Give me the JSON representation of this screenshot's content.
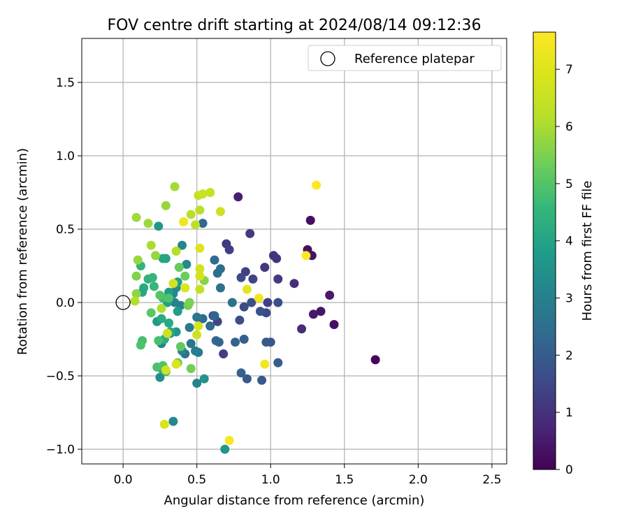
{
  "chart_data": {
    "type": "scatter",
    "title": "FOV centre drift starting at 2024/08/14 09:12:36",
    "xlabel": "Angular distance from reference (arcmin)",
    "ylabel": "Rotation from reference (arcmin)",
    "xlim": [
      -0.28,
      2.6
    ],
    "ylim": [
      -1.1,
      1.8
    ],
    "xticks": [
      0.0,
      0.5,
      1.0,
      1.5,
      2.0,
      2.5
    ],
    "xtick_labels": [
      "0.0",
      "0.5",
      "1.0",
      "1.5",
      "2.0",
      "2.5"
    ],
    "yticks": [
      -1.0,
      -0.5,
      0.0,
      0.5,
      1.0,
      1.5
    ],
    "ytick_labels": [
      "−1.0",
      "−0.5",
      "0.0",
      "0.5",
      "1.0",
      "1.5"
    ],
    "grid": true,
    "legend": {
      "placement": "top-right",
      "entries": [
        "Reference platepar"
      ]
    },
    "reference_point": {
      "x": 0.0,
      "y": 0.0,
      "label": "Reference platepar"
    },
    "colorbar": {
      "label": "Hours from first FF file",
      "colormap": "viridis",
      "range": [
        0,
        7.65
      ],
      "ticks": [
        0,
        1,
        2,
        3,
        4,
        5,
        6,
        7
      ],
      "tick_labels": [
        "0",
        "1",
        "2",
        "3",
        "4",
        "5",
        "6",
        "7"
      ]
    },
    "points": [
      {
        "x": 1.71,
        "y": -0.39,
        "c": 0.1
      },
      {
        "x": 1.43,
        "y": -0.15,
        "c": 0.3
      },
      {
        "x": 1.34,
        "y": -0.06,
        "c": 0.4
      },
      {
        "x": 1.29,
        "y": -0.08,
        "c": 0.45
      },
      {
        "x": 1.4,
        "y": 0.05,
        "c": 0.5
      },
      {
        "x": 1.28,
        "y": 0.32,
        "c": 0.35
      },
      {
        "x": 1.25,
        "y": 0.36,
        "c": 0.3
      },
      {
        "x": 1.27,
        "y": 0.56,
        "c": 0.25
      },
      {
        "x": 0.78,
        "y": 0.72,
        "c": 0.6
      },
      {
        "x": 1.21,
        "y": -0.18,
        "c": 0.85
      },
      {
        "x": 1.16,
        "y": 0.13,
        "c": 0.9
      },
      {
        "x": 1.02,
        "y": 0.32,
        "c": 1.0
      },
      {
        "x": 1.04,
        "y": 0.3,
        "c": 1.05
      },
      {
        "x": 1.05,
        "y": 0.16,
        "c": 1.2
      },
      {
        "x": 0.96,
        "y": 0.24,
        "c": 1.1
      },
      {
        "x": 0.86,
        "y": 0.47,
        "c": 1.2
      },
      {
        "x": 0.7,
        "y": 0.4,
        "c": 1.15
      },
      {
        "x": 0.72,
        "y": 0.36,
        "c": 1.3
      },
      {
        "x": 0.83,
        "y": 0.21,
        "c": 1.35
      },
      {
        "x": 0.88,
        "y": 0.16,
        "c": 1.4
      },
      {
        "x": 0.8,
        "y": 0.17,
        "c": 1.55
      },
      {
        "x": 0.97,
        "y": -0.07,
        "c": 1.5
      },
      {
        "x": 0.98,
        "y": 0.0,
        "c": 1.3
      },
      {
        "x": 1.05,
        "y": 0.0,
        "c": 1.7
      },
      {
        "x": 0.93,
        "y": -0.06,
        "c": 1.75
      },
      {
        "x": 0.87,
        "y": 0.0,
        "c": 1.7
      },
      {
        "x": 0.82,
        "y": -0.03,
        "c": 1.6
      },
      {
        "x": 0.79,
        "y": -0.12,
        "c": 1.65
      },
      {
        "x": 0.61,
        "y": -0.09,
        "c": 1.6
      },
      {
        "x": 0.64,
        "y": -0.13,
        "c": 1.5
      },
      {
        "x": 0.68,
        "y": -0.35,
        "c": 1.3
      },
      {
        "x": 0.97,
        "y": -0.27,
        "c": 1.9
      },
      {
        "x": 1.0,
        "y": -0.27,
        "c": 1.85
      },
      {
        "x": 1.05,
        "y": -0.41,
        "c": 2.0
      },
      {
        "x": 0.94,
        "y": -0.53,
        "c": 1.95
      },
      {
        "x": 0.84,
        "y": -0.52,
        "c": 2.0
      },
      {
        "x": 0.8,
        "y": -0.48,
        "c": 2.15
      },
      {
        "x": 0.82,
        "y": -0.25,
        "c": 2.1
      },
      {
        "x": 0.76,
        "y": -0.27,
        "c": 2.2
      },
      {
        "x": 0.63,
        "y": -0.26,
        "c": 2.3
      },
      {
        "x": 0.65,
        "y": -0.27,
        "c": 2.25
      },
      {
        "x": 0.54,
        "y": -0.11,
        "c": 2.4
      },
      {
        "x": 0.59,
        "y": -0.16,
        "c": 2.35
      },
      {
        "x": 0.62,
        "y": -0.09,
        "c": 2.2
      },
      {
        "x": 0.74,
        "y": 0.0,
        "c": 2.6
      },
      {
        "x": 0.66,
        "y": 0.1,
        "c": 2.55
      },
      {
        "x": 0.66,
        "y": 0.23,
        "c": 2.45
      },
      {
        "x": 0.64,
        "y": 0.2,
        "c": 2.5
      },
      {
        "x": 0.62,
        "y": 0.29,
        "c": 2.4
      },
      {
        "x": 0.54,
        "y": 0.54,
        "c": 2.3
      },
      {
        "x": 0.5,
        "y": -0.1,
        "c": 2.75
      },
      {
        "x": 0.51,
        "y": -0.34,
        "c": 2.8
      },
      {
        "x": 0.49,
        "y": -0.33,
        "c": 2.9
      },
      {
        "x": 0.46,
        "y": -0.28,
        "c": 2.7
      },
      {
        "x": 0.45,
        "y": -0.17,
        "c": 2.8
      },
      {
        "x": 0.42,
        "y": -0.35,
        "c": 2.6
      },
      {
        "x": 0.4,
        "y": -0.33,
        "c": 3.1
      },
      {
        "x": 0.39,
        "y": -0.02,
        "c": 3.0
      },
      {
        "x": 0.35,
        "y": 0.0,
        "c": 3.1
      },
      {
        "x": 0.4,
        "y": 0.39,
        "c": 3.2
      },
      {
        "x": 0.43,
        "y": 0.26,
        "c": 3.3
      },
      {
        "x": 0.36,
        "y": 0.1,
        "c": 3.35
      },
      {
        "x": 0.34,
        "y": 0.06,
        "c": 3.2
      },
      {
        "x": 0.34,
        "y": -0.81,
        "c": 3.2
      },
      {
        "x": 0.5,
        "y": -0.55,
        "c": 3.1
      },
      {
        "x": 0.55,
        "y": -0.52,
        "c": 3.5
      },
      {
        "x": 0.69,
        "y": -1.0,
        "c": 3.6
      },
      {
        "x": 0.32,
        "y": -0.21,
        "c": 3.4
      },
      {
        "x": 0.28,
        "y": -0.25,
        "c": 3.3
      },
      {
        "x": 0.26,
        "y": -0.28,
        "c": 3.2
      },
      {
        "x": 0.25,
        "y": -0.51,
        "c": 3.35
      },
      {
        "x": 0.23,
        "y": -0.13,
        "c": 3.65
      },
      {
        "x": 0.24,
        "y": 0.52,
        "c": 3.7
      },
      {
        "x": 0.36,
        "y": -0.2,
        "c": 3.6
      },
      {
        "x": 0.37,
        "y": -0.06,
        "c": 3.8
      },
      {
        "x": 0.37,
        "y": 0.14,
        "c": 3.9
      },
      {
        "x": 0.3,
        "y": 0.0,
        "c": 3.9
      },
      {
        "x": 0.31,
        "y": 0.07,
        "c": 3.75
      },
      {
        "x": 0.29,
        "y": 0.3,
        "c": 4.0
      },
      {
        "x": 0.27,
        "y": 0.3,
        "c": 4.05
      },
      {
        "x": 0.32,
        "y": -0.2,
        "c": 4.1
      },
      {
        "x": 0.31,
        "y": -0.14,
        "c": 4.15
      },
      {
        "x": 0.26,
        "y": -0.11,
        "c": 4.2
      },
      {
        "x": 0.26,
        "y": -0.45,
        "c": 4.25
      },
      {
        "x": 0.28,
        "y": -0.25,
        "c": 4.3
      },
      {
        "x": 0.14,
        "y": 0.1,
        "c": 4.2
      },
      {
        "x": 0.13,
        "y": 0.07,
        "c": 4.1
      },
      {
        "x": 0.17,
        "y": 0.16,
        "c": 4.4
      },
      {
        "x": 0.12,
        "y": 0.25,
        "c": 4.5
      },
      {
        "x": 0.2,
        "y": 0.17,
        "c": 4.55
      },
      {
        "x": 0.21,
        "y": 0.11,
        "c": 4.6
      },
      {
        "x": 0.27,
        "y": 0.03,
        "c": 4.7
      },
      {
        "x": 0.29,
        "y": -0.47,
        "c": 4.7
      },
      {
        "x": 0.13,
        "y": -0.26,
        "c": 4.8
      },
      {
        "x": 0.12,
        "y": -0.29,
        "c": 4.9
      },
      {
        "x": 0.24,
        "y": -0.26,
        "c": 4.85
      },
      {
        "x": 0.23,
        "y": -0.44,
        "c": 4.9
      },
      {
        "x": 0.27,
        "y": -0.43,
        "c": 5.0
      },
      {
        "x": 0.25,
        "y": 0.05,
        "c": 5.0
      },
      {
        "x": 0.31,
        "y": 0.03,
        "c": 4.95
      },
      {
        "x": 0.19,
        "y": -0.07,
        "c": 5.1
      },
      {
        "x": 0.39,
        "y": -0.3,
        "c": 5.2
      },
      {
        "x": 0.38,
        "y": 0.24,
        "c": 5.25
      },
      {
        "x": 0.42,
        "y": 0.18,
        "c": 5.3
      },
      {
        "x": 0.44,
        "y": -0.02,
        "c": 5.35
      },
      {
        "x": 0.46,
        "y": -0.45,
        "c": 5.4
      },
      {
        "x": 0.37,
        "y": -0.41,
        "c": 5.3
      },
      {
        "x": 0.45,
        "y": 0.0,
        "c": 5.5
      },
      {
        "x": 0.55,
        "y": 0.15,
        "c": 5.6
      },
      {
        "x": 0.09,
        "y": 0.18,
        "c": 5.55
      },
      {
        "x": 0.09,
        "y": 0.06,
        "c": 5.7
      },
      {
        "x": 0.1,
        "y": 0.29,
        "c": 5.8
      },
      {
        "x": 0.22,
        "y": 0.32,
        "c": 5.75
      },
      {
        "x": 0.09,
        "y": 0.58,
        "c": 5.9
      },
      {
        "x": 0.17,
        "y": 0.54,
        "c": 5.85
      },
      {
        "x": 0.29,
        "y": 0.66,
        "c": 5.8
      },
      {
        "x": 0.35,
        "y": 0.79,
        "c": 5.95
      },
      {
        "x": 0.19,
        "y": 0.39,
        "c": 6.0
      },
      {
        "x": 0.26,
        "y": -0.04,
        "c": 6.05
      },
      {
        "x": 0.08,
        "y": 0.01,
        "c": 6.1
      },
      {
        "x": 0.36,
        "y": 0.35,
        "c": 6.15
      },
      {
        "x": 0.46,
        "y": 0.6,
        "c": 6.2
      },
      {
        "x": 0.49,
        "y": 0.53,
        "c": 6.3
      },
      {
        "x": 0.52,
        "y": 0.63,
        "c": 6.25
      },
      {
        "x": 0.51,
        "y": 0.73,
        "c": 6.4
      },
      {
        "x": 0.59,
        "y": 0.75,
        "c": 6.5
      },
      {
        "x": 0.54,
        "y": 0.74,
        "c": 6.55
      },
      {
        "x": 0.66,
        "y": 0.62,
        "c": 6.6
      },
      {
        "x": 0.52,
        "y": 0.09,
        "c": 6.45
      },
      {
        "x": 0.52,
        "y": 0.18,
        "c": 6.75
      },
      {
        "x": 0.52,
        "y": 0.23,
        "c": 6.7
      },
      {
        "x": 0.5,
        "y": -0.22,
        "c": 6.6
      },
      {
        "x": 0.51,
        "y": -0.16,
        "c": 6.8
      },
      {
        "x": 0.3,
        "y": -0.21,
        "c": 6.65
      },
      {
        "x": 0.29,
        "y": -0.46,
        "c": 6.7
      },
      {
        "x": 0.28,
        "y": -0.83,
        "c": 6.85
      },
      {
        "x": 0.36,
        "y": -0.42,
        "c": 6.9
      },
      {
        "x": 0.34,
        "y": 0.13,
        "c": 6.75
      },
      {
        "x": 0.42,
        "y": 0.1,
        "c": 6.9
      },
      {
        "x": 0.52,
        "y": 0.37,
        "c": 7.0
      },
      {
        "x": 0.41,
        "y": 0.55,
        "c": 7.3
      },
      {
        "x": 0.84,
        "y": 0.09,
        "c": 7.1
      },
      {
        "x": 0.92,
        "y": 0.03,
        "c": 7.35
      },
      {
        "x": 0.96,
        "y": -0.42,
        "c": 7.4
      },
      {
        "x": 0.72,
        "y": -0.94,
        "c": 7.5
      },
      {
        "x": 1.24,
        "y": 0.32,
        "c": 7.6
      },
      {
        "x": 1.31,
        "y": 0.8,
        "c": 7.65
      }
    ]
  }
}
